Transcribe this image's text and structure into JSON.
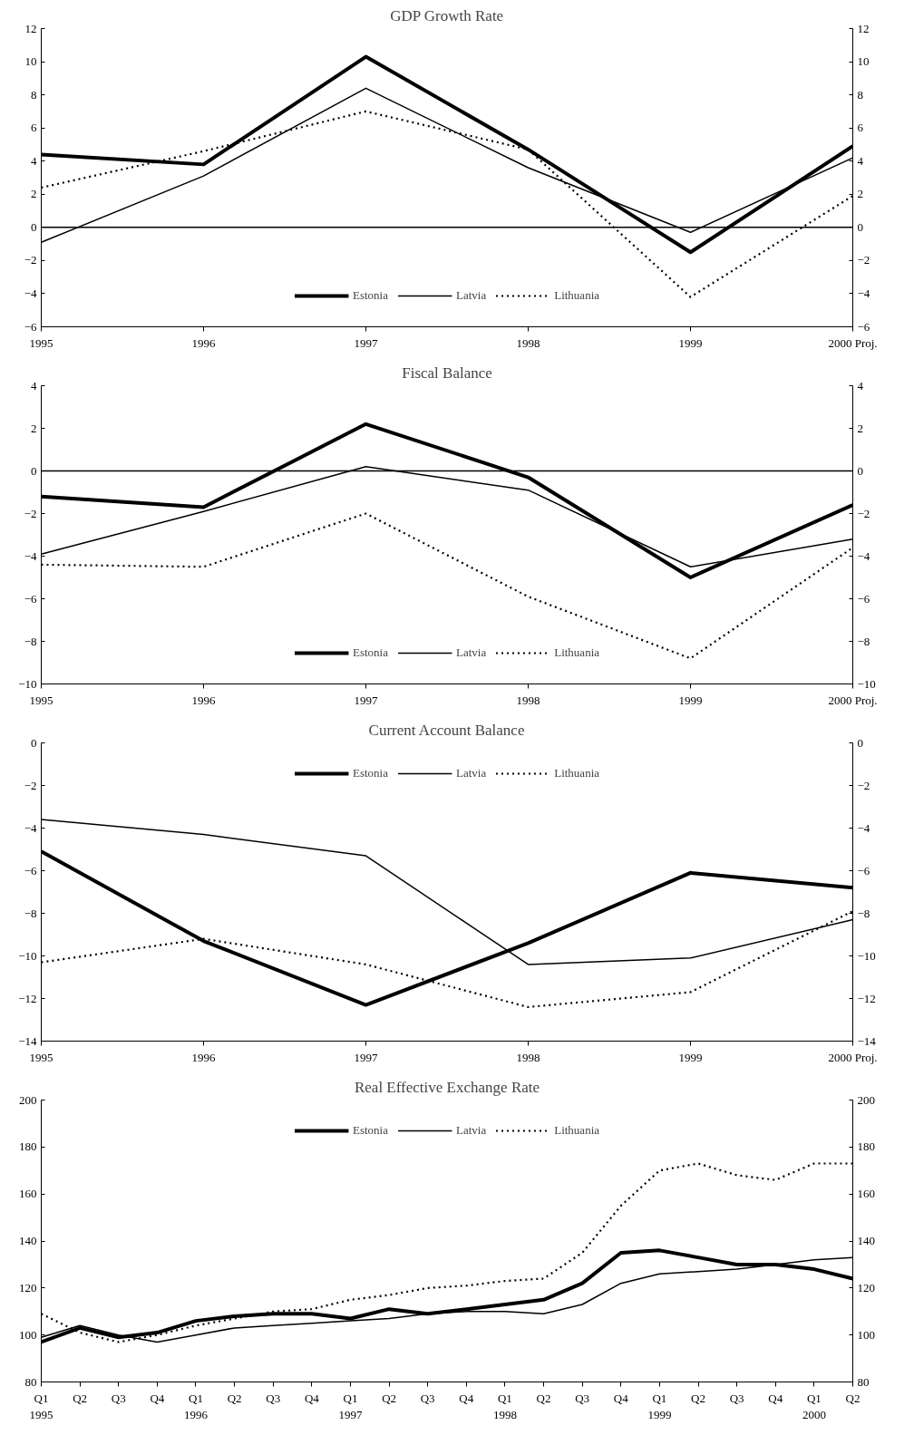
{
  "chart_data": [
    {
      "type": "line",
      "title": "GDP Growth Rate",
      "categories": [
        "1995",
        "1996",
        "1997",
        "1998",
        "1999",
        "2000 Proj."
      ],
      "ylim": [
        -6,
        12
      ],
      "yticks": [
        -6,
        -4,
        -2,
        0,
        2,
        4,
        6,
        8,
        10,
        12
      ],
      "y2lim": [
        -6,
        12
      ],
      "y2ticks": [
        -6,
        -4,
        -2,
        0,
        2,
        4,
        6,
        8,
        10,
        12
      ],
      "grid": false,
      "legend": "bottom",
      "marker": "none",
      "ref_lines": [
        {
          "axis": "y",
          "value": 0,
          "color": "#000000"
        }
      ],
      "series": [
        {
          "name": "Estonia",
          "color": "#000000",
          "line_style": "solid",
          "values": [
            4.4,
            3.8,
            10.3,
            4.7,
            -1.5,
            4.9
          ]
        },
        {
          "name": "Latvia",
          "color": "#000000",
          "line_style": "solid",
          "values": [
            -0.9,
            3.1,
            8.4,
            3.6,
            -0.3,
            4.2
          ]
        },
        {
          "name": "Lithuania",
          "color": "#000000",
          "line_style": "dotted",
          "values": [
            2.4,
            4.6,
            7.0,
            4.7,
            -4.2,
            1.9
          ]
        }
      ]
    },
    {
      "type": "line",
      "title": "Fiscal Balance",
      "categories": [
        "1995",
        "1996",
        "1997",
        "1998",
        "1999",
        "2000 Proj."
      ],
      "ylim": [
        -10,
        4
      ],
      "yticks": [
        -10,
        -8,
        -6,
        -4,
        -2,
        0,
        2,
        4
      ],
      "y2lim": [
        -10,
        4
      ],
      "y2ticks": [
        -10,
        -8,
        -6,
        -4,
        -2,
        0,
        2,
        4
      ],
      "grid": false,
      "legend": "bottom",
      "marker": "none",
      "ref_lines": [
        {
          "axis": "y",
          "value": 0,
          "color": "#000000"
        }
      ],
      "series": [
        {
          "name": "Estonia",
          "color": "#000000",
          "line_style": "solid",
          "values": [
            -1.2,
            -1.7,
            2.2,
            -0.3,
            -5.0,
            -1.6
          ]
        },
        {
          "name": "Latvia",
          "color": "#000000",
          "line_style": "solid",
          "values": [
            -3.9,
            -1.9,
            0.2,
            -0.9,
            -4.5,
            -3.2
          ]
        },
        {
          "name": "Lithuania",
          "color": "#000000",
          "line_style": "dotted",
          "values": [
            -4.4,
            -4.5,
            -2.0,
            -5.9,
            -8.8,
            -3.6
          ]
        }
      ]
    },
    {
      "type": "line",
      "title": "Current Account Balance",
      "categories": [
        "1995",
        "1996",
        "1997",
        "1998",
        "1999",
        "2000 Proj."
      ],
      "ylim": [
        -14,
        0
      ],
      "yticks": [
        -14,
        -12,
        -10,
        -8,
        -6,
        -4,
        -2,
        0
      ],
      "y2lim": [
        -14,
        0
      ],
      "y2ticks": [
        -14,
        -12,
        -10,
        -8,
        -6,
        -4,
        -2,
        0
      ],
      "grid": false,
      "legend": "top",
      "marker": "none",
      "series": [
        {
          "name": "Estonia",
          "color": "#000000",
          "line_style": "solid",
          "values": [
            -5.1,
            -9.3,
            -12.3,
            -9.4,
            -6.1,
            -6.8
          ]
        },
        {
          "name": "Latvia",
          "color": "#000000",
          "line_style": "solid",
          "values": [
            -3.6,
            -4.3,
            -5.3,
            -10.4,
            -10.1,
            -8.3
          ]
        },
        {
          "name": "Lithuania",
          "color": "#000000",
          "line_style": "dotted",
          "values": [
            -10.3,
            -9.2,
            -10.4,
            -12.4,
            -11.7,
            -7.9
          ]
        }
      ]
    },
    {
      "type": "line",
      "title": "Real Effective Exchange Rate",
      "categories": [
        "Q1\n1995",
        "Q2",
        "Q3",
        "Q4",
        "Q1\n1996",
        "Q2",
        "Q3",
        "Q4",
        "Q1\n1997",
        "Q2",
        "Q3",
        "Q4",
        "Q1\n1998",
        "Q2",
        "Q3",
        "Q4",
        "Q1\n1999",
        "Q2",
        "Q3",
        "Q4",
        "Q1\n2000",
        "Q2"
      ],
      "ylim": [
        80,
        200
      ],
      "yticks": [
        80,
        100,
        120,
        140,
        160,
        180,
        200
      ],
      "y2lim": [
        80,
        200
      ],
      "y2ticks": [
        80,
        100,
        120,
        140,
        160,
        180,
        200
      ],
      "grid": false,
      "legend": "top",
      "marker": "none",
      "series": [
        {
          "name": "Estonia",
          "color": "#000000",
          "line_style": "solid",
          "values": [
            97,
            103,
            99,
            101,
            106,
            108,
            109,
            109,
            107,
            111,
            109,
            111,
            113,
            115,
            122,
            135,
            136,
            133,
            130,
            130,
            128,
            124
          ]
        },
        {
          "name": "Latvia",
          "color": "#000000",
          "line_style": "solid",
          "values": [
            99,
            104,
            100,
            97,
            100,
            103,
            104,
            105,
            106,
            107,
            109,
            110,
            110,
            109,
            113,
            122,
            126,
            127,
            128,
            130,
            132,
            133
          ]
        },
        {
          "name": "Lithuania",
          "color": "#000000",
          "line_style": "dotted",
          "values": [
            109,
            101,
            97,
            100,
            104,
            107,
            110,
            111,
            115,
            117,
            120,
            121,
            123,
            124,
            135,
            155,
            170,
            173,
            168,
            166,
            173,
            173
          ]
        }
      ]
    }
  ]
}
